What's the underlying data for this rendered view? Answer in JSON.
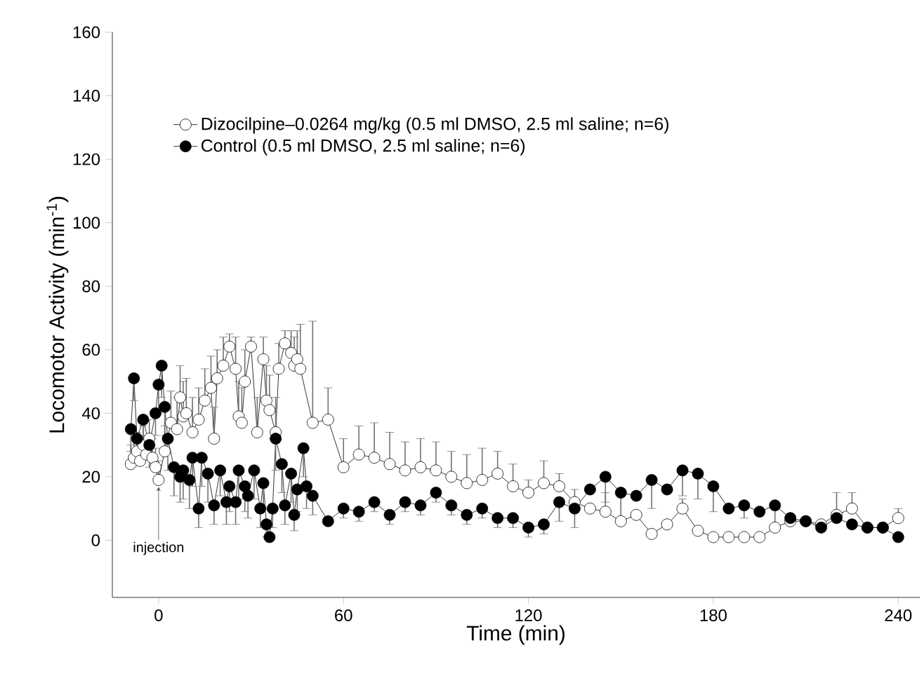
{
  "chart_data": {
    "type": "line",
    "xlabel": "Time (min)",
    "ylabel": "Locomotor Activity (min$^{-1}$)",
    "xlim": [
      -15,
      247
    ],
    "ylim": [
      -18,
      160
    ],
    "xticks": [
      0,
      60,
      120,
      180,
      240
    ],
    "yticks": [
      0,
      20,
      40,
      60,
      80,
      100,
      120,
      140,
      160
    ],
    "grid": false,
    "legend": "top left",
    "marker": "circle",
    "line_style": "solid",
    "annotations": [
      {
        "text": "injection",
        "x": 0,
        "y": 19
      }
    ],
    "series": [
      {
        "name": "Dizocilpine–0.0264 mg/kg (0.5 ml DMSO, 2.5 ml saline; n=6)",
        "color": "#ffffff",
        "x": [
          -9,
          -8,
          -7,
          -6,
          -5,
          -4,
          -3,
          -2,
          -1,
          0,
          2,
          4,
          6,
          7,
          8,
          9,
          11,
          13,
          15,
          17,
          18,
          19,
          21,
          23,
          25,
          26,
          27,
          28,
          30,
          32,
          34,
          35,
          36,
          38,
          39,
          41,
          43,
          44,
          45,
          46,
          50,
          55,
          60,
          65,
          70,
          75,
          80,
          85,
          90,
          95,
          100,
          105,
          110,
          115,
          120,
          125,
          130,
          135,
          140,
          145,
          150,
          155,
          160,
          165,
          170,
          175,
          180,
          185,
          190,
          195,
          200,
          205,
          210,
          215,
          220,
          225,
          230,
          235,
          240
        ],
        "values": [
          24,
          26,
          28,
          25,
          30,
          27,
          32,
          26,
          23,
          19,
          28,
          37,
          35,
          45,
          39,
          40,
          34,
          38,
          44,
          48,
          32,
          51,
          55,
          61,
          54,
          39,
          37,
          50,
          61,
          34,
          57,
          44,
          41,
          34,
          54,
          62,
          59,
          55,
          57,
          54,
          37,
          38,
          23,
          27,
          26,
          24,
          22,
          23,
          22,
          20,
          18,
          19,
          21,
          17,
          15,
          18,
          17,
          12,
          10,
          9,
          6,
          8,
          2,
          5,
          10,
          3,
          1,
          1,
          1,
          1,
          4,
          6,
          6,
          5,
          8,
          10,
          4,
          4,
          7
        ],
        "errors": [
          [
            24,
            30
          ],
          [
            26,
            32
          ],
          [
            28,
            34
          ],
          [
            25,
            31
          ],
          [
            30,
            36
          ],
          [
            27,
            33
          ],
          [
            32,
            38
          ],
          [
            26,
            32
          ],
          [
            23,
            29
          ],
          [
            19,
            25
          ],
          [
            28,
            36
          ],
          [
            37,
            47
          ],
          [
            35,
            45
          ],
          [
            45,
            55
          ],
          [
            39,
            50
          ],
          [
            40,
            51
          ],
          [
            34,
            45
          ],
          [
            38,
            48
          ],
          [
            44,
            54
          ],
          [
            48,
            58
          ],
          [
            32,
            42
          ],
          [
            51,
            60
          ],
          [
            55,
            64
          ],
          [
            61,
            65
          ],
          [
            54,
            64
          ],
          [
            39,
            50
          ],
          [
            37,
            48
          ],
          [
            50,
            60
          ],
          [
            61,
            64
          ],
          [
            34,
            45
          ],
          [
            57,
            64
          ],
          [
            44,
            55
          ],
          [
            41,
            52
          ],
          [
            34,
            45
          ],
          [
            54,
            62
          ],
          [
            62,
            66
          ],
          [
            59,
            66
          ],
          [
            55,
            64
          ],
          [
            57,
            66
          ],
          [
            54,
            68
          ],
          [
            37,
            69
          ],
          [
            38,
            48
          ],
          [
            23,
            32
          ],
          [
            27,
            36
          ],
          [
            26,
            37
          ],
          [
            24,
            34
          ],
          [
            22,
            31
          ],
          [
            23,
            32
          ],
          [
            22,
            31
          ],
          [
            20,
            28
          ],
          [
            18,
            27
          ],
          [
            19,
            29
          ],
          [
            21,
            28
          ],
          [
            17,
            24
          ],
          [
            15,
            19
          ],
          [
            18,
            25
          ],
          [
            17,
            21
          ],
          [
            12,
            16
          ],
          null,
          [
            9,
            15
          ],
          null,
          null,
          null,
          null,
          [
            10,
            13
          ],
          null,
          null,
          null,
          null,
          null,
          [
            4,
            11
          ],
          null,
          null,
          null,
          [
            8,
            15
          ],
          [
            10,
            15
          ],
          null,
          null,
          [
            7,
            10
          ]
        ]
      },
      {
        "name": "Control (0.5 ml DMSO, 2.5 ml saline; n=6)",
        "color": "#000000",
        "x": [
          -9,
          -8,
          -7,
          -5,
          -3,
          -1,
          0,
          1,
          2,
          3,
          5,
          7,
          8,
          10,
          11,
          13,
          14,
          16,
          18,
          20,
          22,
          23,
          25,
          26,
          28,
          29,
          31,
          33,
          34,
          35,
          36,
          37,
          38,
          40,
          41,
          43,
          44,
          45,
          47,
          48,
          50,
          55,
          60,
          65,
          70,
          75,
          80,
          85,
          90,
          95,
          100,
          105,
          110,
          115,
          120,
          125,
          130,
          135,
          140,
          145,
          150,
          155,
          160,
          165,
          170,
          175,
          180,
          185,
          190,
          195,
          200,
          205,
          210,
          215,
          220,
          225,
          230,
          235,
          240
        ],
        "values": [
          35,
          51,
          32,
          38,
          30,
          40,
          49,
          55,
          42,
          32,
          23,
          20,
          22,
          19,
          26,
          10,
          26,
          21,
          11,
          22,
          12,
          17,
          12,
          22,
          17,
          14,
          22,
          10,
          18,
          5,
          1,
          10,
          32,
          24,
          11,
          21,
          8,
          16,
          29,
          17,
          14,
          6,
          10,
          9,
          12,
          8,
          12,
          11,
          15,
          11,
          8,
          10,
          7,
          7,
          4,
          5,
          12,
          10,
          16,
          20,
          15,
          14,
          19,
          16,
          22,
          21,
          17,
          10,
          11,
          9,
          11,
          7,
          6,
          4,
          7,
          5,
          4,
          4,
          1
        ],
        "errors": [
          [
            28,
            35
          ],
          [
            44,
            51
          ],
          [
            25,
            32
          ],
          [
            30,
            38
          ],
          [
            23,
            30
          ],
          [
            33,
            40
          ],
          [
            40,
            49
          ],
          [
            45,
            55
          ],
          [
            33,
            42
          ],
          [
            22,
            32
          ],
          [
            14,
            23
          ],
          [
            12,
            20
          ],
          [
            13,
            22
          ],
          [
            10,
            19
          ],
          [
            17,
            26
          ],
          [
            4,
            10
          ],
          [
            17,
            26
          ],
          [
            12,
            21
          ],
          [
            5,
            11
          ],
          [
            14,
            22
          ],
          [
            5,
            12
          ],
          [
            9,
            17
          ],
          [
            5,
            12
          ],
          [
            13,
            22
          ],
          [
            9,
            17
          ],
          [
            7,
            14
          ],
          [
            13,
            22
          ],
          [
            4,
            10
          ],
          [
            10,
            18
          ],
          [
            1,
            5
          ],
          [
            0,
            1
          ],
          [
            4,
            10
          ],
          [
            22,
            32
          ],
          [
            15,
            24
          ],
          [
            5,
            11
          ],
          [
            12,
            21
          ],
          [
            3,
            8
          ],
          [
            9,
            16
          ],
          [
            20,
            29
          ],
          [
            10,
            17
          ],
          [
            8,
            14
          ],
          null,
          [
            7,
            10
          ],
          [
            6,
            9
          ],
          [
            9,
            12
          ],
          [
            5,
            8
          ],
          [
            9,
            12
          ],
          [
            8,
            11
          ],
          [
            12,
            15
          ],
          [
            8,
            11
          ],
          [
            5,
            8
          ],
          [
            7,
            10
          ],
          [
            4,
            7
          ],
          [
            4,
            7
          ],
          [
            1,
            4
          ],
          [
            2,
            5
          ],
          [
            6,
            12
          ],
          [
            4,
            10
          ],
          null,
          [
            12,
            20
          ],
          [
            5,
            15
          ],
          null,
          [
            10,
            19
          ],
          null,
          [
            14,
            22
          ],
          [
            13,
            21
          ],
          [
            9,
            17
          ],
          null,
          [
            7,
            11
          ],
          null,
          null,
          null,
          null,
          null,
          null,
          null,
          null,
          null,
          null
        ]
      }
    ]
  }
}
